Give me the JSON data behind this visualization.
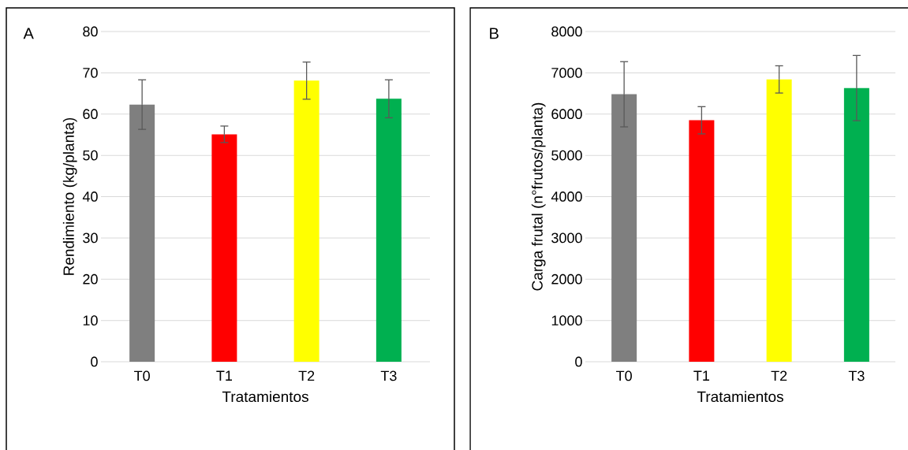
{
  "chart_data": [
    {
      "type": "bar",
      "categories": [
        "T0",
        "T1",
        "T2",
        "T3"
      ],
      "values": [
        62.3,
        55.1,
        68.1,
        63.7
      ],
      "colors": [
        "#7f7f7f",
        "#ff0000",
        "#ffff00",
        "#00b050"
      ],
      "errors": [
        6,
        2,
        4.5,
        4.6
      ],
      "xlabel": "Tratamientos",
      "ylabel": "Rendimiento (kg/planta)",
      "ylim": [
        0,
        80
      ],
      "yticks": [
        0,
        10,
        20,
        30,
        40,
        50,
        60,
        70,
        80
      ],
      "grid": "y",
      "annotations": [
        "A"
      ]
    },
    {
      "type": "bar",
      "categories": [
        "T0",
        "T1",
        "T2",
        "T3"
      ],
      "values": [
        6480,
        5850,
        6840,
        6630
      ],
      "colors": [
        "#7f7f7f",
        "#ff0000",
        "#ffff00",
        "#00b050"
      ],
      "errors": [
        790,
        330,
        330,
        790
      ],
      "xlabel": "Tratamientos",
      "ylabel": "Carga frutal (n°frutos/planta)",
      "ylim": [
        0,
        8000
      ],
      "yticks": [
        0,
        1000,
        2000,
        3000,
        4000,
        5000,
        6000,
        7000,
        8000
      ],
      "grid": "y",
      "annotations": [
        "B"
      ]
    }
  ]
}
